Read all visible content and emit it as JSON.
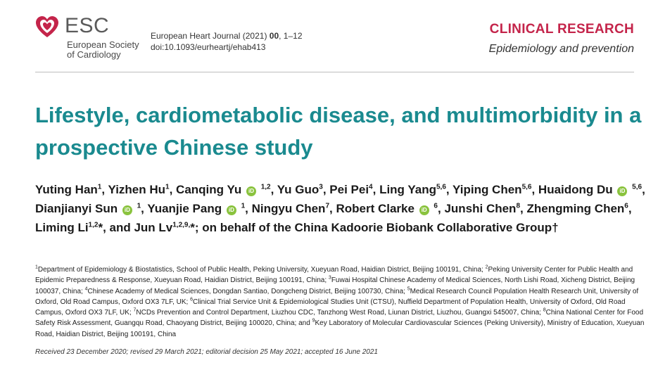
{
  "header": {
    "esc_word": "ESC",
    "esc_society_line1": "European Society",
    "esc_society_line2": "of Cardiology",
    "journal_name": "European Heart Journal (2021)",
    "journal_volume": "00",
    "journal_pages": ", 1–12",
    "doi": "doi:10.1093/eurheartj/ehab413",
    "section": "CLINICAL RESEARCH",
    "subsection": "Epidemiology and prevention",
    "colors": {
      "section": "#c4244a",
      "title": "#1a8a8f",
      "logo": "#c4244a",
      "orcid": "#8ac33e"
    }
  },
  "article": {
    "title": "Lifestyle, cardiometabolic disease, and multimorbidity in a prospective Chinese study",
    "authors": [
      {
        "name": "Yuting Han",
        "sup": "1",
        "orcid": false,
        "sep": ", "
      },
      {
        "name": "Yizhen Hu",
        "sup": "1",
        "orcid": false,
        "sep": ", "
      },
      {
        "name": "Canqing Yu",
        "sup": "1,2",
        "orcid": true,
        "sep": ", "
      },
      {
        "name": "Yu Guo",
        "sup": "3",
        "orcid": false,
        "sep": ", "
      },
      {
        "name": "Pei Pei",
        "sup": "4",
        "orcid": false,
        "sep": ", "
      },
      {
        "name": "Ling Yang",
        "sup": "5,6",
        "orcid": false,
        "sep": ", "
      },
      {
        "name": "Yiping Chen",
        "sup": "5,6",
        "orcid": false,
        "sep": ", "
      },
      {
        "name": "Huaidong Du",
        "sup": "5,6",
        "orcid": true,
        "sep": ", "
      },
      {
        "name": "Dianjianyi Sun",
        "sup": "1",
        "orcid": true,
        "sep": ", "
      },
      {
        "name": "Yuanjie Pang",
        "sup": "1",
        "orcid": true,
        "sep": ", "
      },
      {
        "name": "Ningyu Chen",
        "sup": "7",
        "orcid": false,
        "sep": ", "
      },
      {
        "name": "Robert Clarke",
        "sup": "6",
        "orcid": true,
        "sep": ", "
      },
      {
        "name": "Junshi Chen",
        "sup": "8",
        "orcid": false,
        "sep": ", "
      },
      {
        "name": "Zhengming Chen",
        "sup": "6",
        "orcid": false,
        "sep": ", "
      },
      {
        "name": "Liming Li",
        "sup": "1,2",
        "orcid": false,
        "sep": "*, "
      },
      {
        "name": "and Jun Lv",
        "sup": "1,2,9,",
        "orcid": false,
        "sep": "*; "
      },
      {
        "name": "on behalf of the China Kadoorie Biobank Collaborative Group",
        "sup": "",
        "orcid": false,
        "sep": "†"
      }
    ],
    "orcid_label": "iD",
    "affiliations": [
      {
        "num": "1",
        "text": "Department of Epidemiology & Biostatistics, School of Public Health, Peking University, Xueyuan Road, Haidian District, Beijing 100191, China; "
      },
      {
        "num": "2",
        "text": "Peking University Center for Public Health and Epidemic Preparedness & Response, Xueyuan Road, Haidian District, Beijing 100191, China; "
      },
      {
        "num": "3",
        "text": "Fuwai Hospital Chinese Academy of Medical Sciences, North Lishi Road, Xicheng District, Beijing 100037, China; "
      },
      {
        "num": "4",
        "text": "Chinese Academy of Medical Sciences, Dongdan Santiao, Dongcheng District, Beijing 100730, China; "
      },
      {
        "num": "5",
        "text": "Medical Research Council Population Health Research Unit, University of Oxford, Old Road Campus, Oxford OX3 7LF, UK; "
      },
      {
        "num": "6",
        "text": "Clinical Trial Service Unit & Epidemiological Studies Unit (CTSU), Nuffield Department of Population Health, University of Oxford, Old Road Campus, Oxford OX3 7LF, UK; "
      },
      {
        "num": "7",
        "text": "NCDs Prevention and Control Department, Liuzhou CDC, Tanzhong West Road, Liunan District, Liuzhou, Guangxi 545007, China; "
      },
      {
        "num": "8",
        "text": "China National Center for Food Safety Risk Assessment, Guangqu Road, Chaoyang District, Beijing 100020, China; and "
      },
      {
        "num": "9",
        "text": "Key Laboratory of Molecular Cardiovascular Sciences (Peking University), Ministry of Education, Xueyuan Road, Haidian District, Beijing 100191, China"
      }
    ],
    "received": "Received 23 December 2020; revised 29 March 2021; editorial decision 25 May 2021; accepted 16 June 2021"
  }
}
